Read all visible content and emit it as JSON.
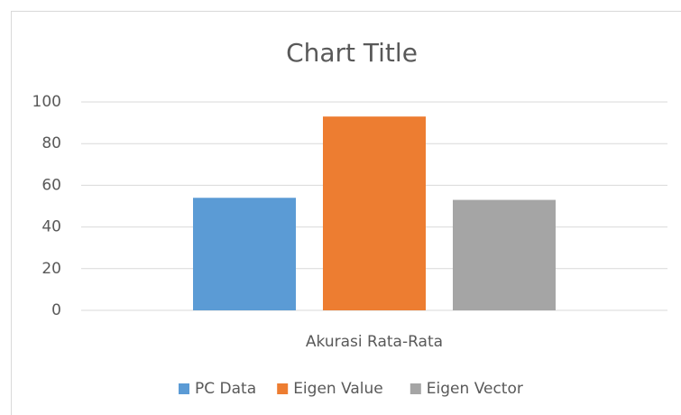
{
  "chart_data": {
    "type": "bar",
    "title": "Chart Title",
    "categories": [
      "Akurasi Rata-Rata"
    ],
    "series": [
      {
        "name": "PC Data",
        "color": "#5b9bd5",
        "values": [
          54
        ]
      },
      {
        "name": "Eigen Value",
        "color": "#ed7d31",
        "values": [
          93
        ]
      },
      {
        "name": "Eigen Vector",
        "color": "#a5a5a5",
        "values": [
          53
        ]
      }
    ],
    "ylim": [
      0,
      100
    ],
    "yticks": [
      0,
      20,
      40,
      60,
      80,
      100
    ],
    "grid": true,
    "legend": "bottom"
  }
}
